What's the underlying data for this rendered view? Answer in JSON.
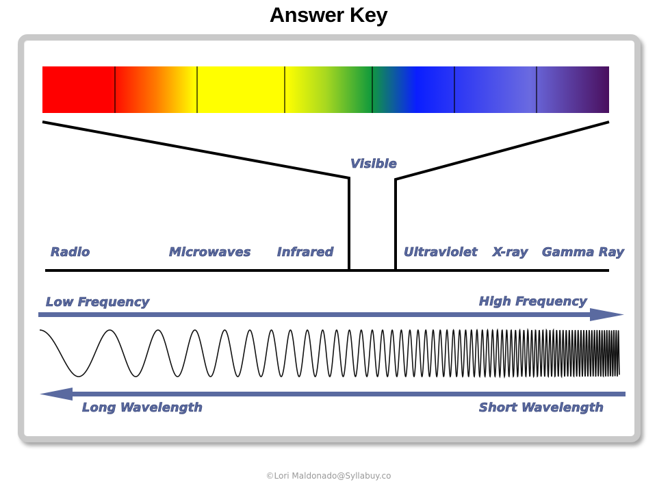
{
  "title": "Answer Key",
  "credit": "©Lori Maldonado@Syllabuy.co",
  "visible_label": "Visible",
  "bands": [
    "Radio",
    "Microwaves",
    "Infrared",
    "Ultraviolet",
    "X-ray",
    "Gamma Ray"
  ],
  "frequency": {
    "low": "Low Frequency",
    "high": "High Frequency"
  },
  "wavelength": {
    "long": "Long Wavelength",
    "short": "Short Wavelength"
  },
  "colors": {
    "label": "#5a6aa0",
    "arrow": "#5a6aa0",
    "spectrum": [
      "#ff0000",
      "#ff8c00",
      "#ffff00",
      "#1c9a3c",
      "#0a1eff",
      "#6a6ae6",
      "#4a1b6b"
    ]
  }
}
